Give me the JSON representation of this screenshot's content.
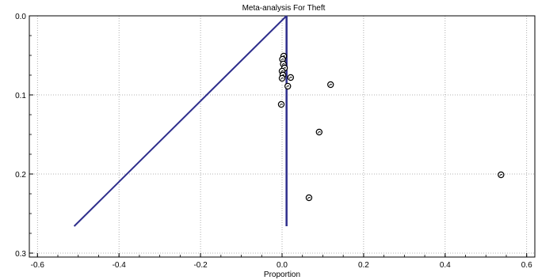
{
  "chart_data": {
    "type": "scatter",
    "title": "Meta-analysis For Theft",
    "xlabel": "Proportion",
    "ylabel": "",
    "xlim": [
      -0.62,
      0.62
    ],
    "ylim": [
      0.0,
      0.305
    ],
    "y_inverted": true,
    "grid": true,
    "x_ticks": [
      -0.6,
      -0.4,
      -0.2,
      0.0,
      0.2,
      0.4,
      0.6
    ],
    "x_tick_labels": [
      "-0.6",
      "-0.4",
      "-0.2",
      "0.0",
      "0.2",
      "0.4",
      "0.6"
    ],
    "y_ticks": [
      0.0,
      0.1,
      0.2,
      0.3
    ],
    "y_tick_labels": [
      "0.0",
      "0.1",
      "0.2",
      "0.3"
    ],
    "funnel": {
      "pooled_estimate": 0.011,
      "apex": {
        "x": 0.011,
        "y": 0.0
      },
      "left_line": [
        {
          "x": 0.011,
          "y": 0.0
        },
        {
          "x": -0.51,
          "y": 0.266
        }
      ],
      "vertical_line": [
        {
          "x": 0.011,
          "y": 0.0
        },
        {
          "x": 0.011,
          "y": 0.266
        }
      ],
      "color": "#2e2e8c"
    },
    "points": [
      {
        "x": 0.004,
        "y": 0.051
      },
      {
        "x": 0.001,
        "y": 0.055
      },
      {
        "x": 0.003,
        "y": 0.061
      },
      {
        "x": 0.006,
        "y": 0.066
      },
      {
        "x": 0.0,
        "y": 0.07
      },
      {
        "x": 0.002,
        "y": 0.075
      },
      {
        "x": 0.0,
        "y": 0.079
      },
      {
        "x": 0.021,
        "y": 0.078
      },
      {
        "x": 0.014,
        "y": 0.089
      },
      {
        "x": 0.119,
        "y": 0.087
      },
      {
        "x": -0.002,
        "y": 0.112
      },
      {
        "x": 0.091,
        "y": 0.147
      },
      {
        "x": 0.537,
        "y": 0.201
      },
      {
        "x": 0.066,
        "y": 0.23
      }
    ],
    "marker_color": "#000000",
    "grid_color": "#9a9a9a"
  }
}
